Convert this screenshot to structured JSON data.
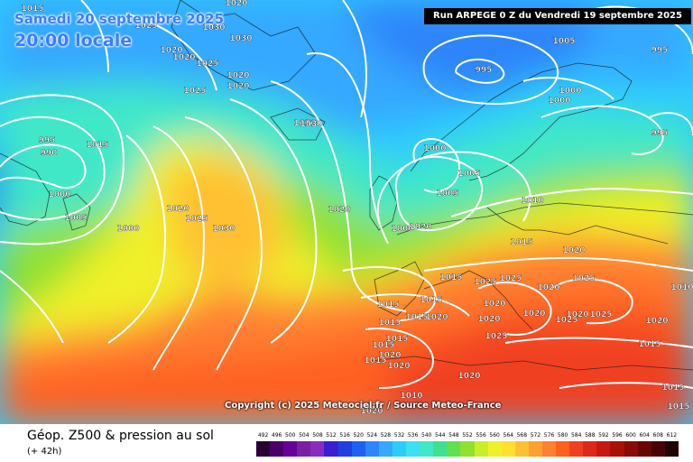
{
  "header": {
    "date": "Samedi 20 septembre 2025",
    "time": "20:00 locale",
    "run": "Run ARPEGE 0 Z du Vendredi 19 septembre 2025"
  },
  "footer": {
    "title": "Géop. Z500 & pression au sol",
    "subtitle": "(+ 42h)",
    "copyright": "Copyright (c) 2025 Meteociel.fr / Source Meteo-France"
  },
  "legend": {
    "labels": [
      "492",
      "496",
      "500",
      "504",
      "508",
      "512",
      "516",
      "520",
      "524",
      "528",
      "532",
      "536",
      "540",
      "544",
      "548",
      "552",
      "556",
      "560",
      "564",
      "568",
      "572",
      "576",
      "580",
      "584",
      "588",
      "592",
      "596",
      "600",
      "604",
      "608",
      "612"
    ],
    "colors": [
      "#2a0033",
      "#4b0066",
      "#660099",
      "#7a1fa0",
      "#8a2bbf",
      "#3a1fd1",
      "#1f3fe0",
      "#2060f0",
      "#2e84fa",
      "#35a8ff",
      "#2ecbff",
      "#3de0f0",
      "#40e8c8",
      "#40e090",
      "#60e050",
      "#90e030",
      "#c8ee2a",
      "#f0f02a",
      "#ffe030",
      "#ffc030",
      "#ffa030",
      "#ff8030",
      "#ff6020",
      "#f04020",
      "#e02818",
      "#c81810",
      "#a81008",
      "#8a0a06",
      "#680605",
      "#480404",
      "#200202"
    ]
  },
  "map": {
    "features": [
      "north-atlantic-ocean",
      "greenland",
      "iceland",
      "british-isles",
      "scandinavia",
      "europe",
      "north-africa"
    ],
    "pressure_labels": [
      "1015",
      "1020",
      "1025",
      "1030",
      "1030",
      "1030",
      "1025",
      "1020",
      "1020",
      "1025",
      "1020",
      "1020",
      "1005",
      "995",
      "995",
      "1000",
      "1000",
      "995",
      "995",
      "990",
      "1000",
      "1005",
      "1015",
      "1000",
      "1020",
      "1025",
      "1030",
      "1030",
      "1020",
      "1000",
      "1005",
      "1005",
      "1000",
      "1020",
      "1010",
      "1015",
      "1020",
      "1025",
      "1025",
      "1020",
      "1020",
      "1015",
      "1025",
      "1025",
      "1020",
      "1025",
      "1015",
      "1020",
      "1015",
      "1015",
      "1015",
      "1020",
      "1015",
      "1015",
      "1020",
      "1020",
      "1020",
      "1025",
      "1020",
      "1015",
      "1015",
      "1015",
      "1020",
      "1010",
      "1025",
      "1020",
      "1015",
      "1010"
    ]
  },
  "colors": {
    "run_box_bg": "#000000",
    "header_text": "#3b7dff",
    "isobar": "#ffffff"
  }
}
